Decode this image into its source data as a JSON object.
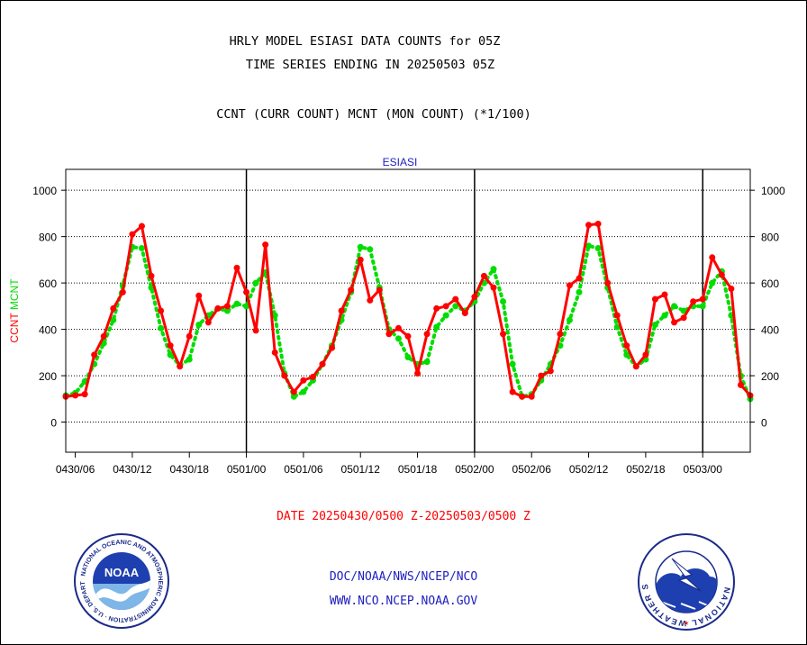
{
  "header": {
    "title_line1": "HRLY MODEL ESIASI DATA COUNTS for 05Z",
    "title_line2": "TIME SERIES ENDING IN 20250503 05Z",
    "subtitle": "CCNT (CURR COUNT) MCNT (MON COUNT) (*1/100)"
  },
  "footer": {
    "date_range": "DATE 20250430/0500 Z-20250503/0500 Z",
    "org_line": "DOC/NOAA/NWS/NCEP/NCO",
    "url_line": "WWW.NCO.NCEP.NOAA.GOV"
  },
  "logos": {
    "noaa": {
      "center_text": "NOAA",
      "ring_text": "NATIONAL OCEANIC AND ATMOSPHERIC ADMINISTRATION · U.S. DEPARTMENT OF COMMERCE ·"
    },
    "nws": {
      "ring_text": "NATIONAL WEATHER SERVICE"
    }
  },
  "colors": {
    "ccnt": "#ff0000",
    "mcnt": "#00dd00",
    "panel_title": "#2020c0",
    "footer_date": "#ff0000",
    "footer_links": "#2020c0"
  },
  "chart_data": {
    "type": "line",
    "title": "ESIASI",
    "ylabel_left": [
      "CCNT",
      "MCNT"
    ],
    "ylim": [
      -130,
      1090
    ],
    "yticks": [
      0,
      200,
      400,
      600,
      800,
      1000
    ],
    "ytick_labels": [
      "0",
      "200",
      "400",
      "600",
      "800",
      "1000"
    ],
    "x_tick_labels": [
      "0430/06",
      "0430/12",
      "0430/18",
      "0501/00",
      "0501/06",
      "0501/12",
      "0501/18",
      "0502/00",
      "0502/06",
      "0502/12",
      "0502/18",
      "0503/00"
    ],
    "x_tick_hours": [
      6,
      12,
      18,
      24,
      30,
      36,
      42,
      48,
      54,
      60,
      66,
      72
    ],
    "day_boundaries_hours": [
      24,
      48,
      72
    ],
    "x_start_hours": 5,
    "x_end_hours": 77,
    "grid": true,
    "series": [
      {
        "name": "CCNT",
        "color": "#ff0000",
        "style": "solid",
        "x_hours": [
          5,
          6,
          7,
          8,
          9,
          10,
          11,
          12,
          13,
          14,
          15,
          16,
          17,
          18,
          19,
          20,
          21,
          22,
          23,
          24,
          25,
          26,
          27,
          28,
          29,
          30,
          31,
          32,
          33,
          34,
          35,
          36,
          37,
          38,
          39,
          40,
          41,
          42,
          43,
          44,
          45,
          46,
          47,
          48,
          49,
          50,
          51,
          52,
          53,
          54,
          55,
          56,
          57,
          58,
          59,
          60,
          61,
          62,
          63,
          64,
          65,
          66,
          67,
          68,
          69,
          70,
          71,
          72,
          73,
          74,
          75,
          76,
          77
        ],
        "values": [
          110,
          115,
          120,
          290,
          370,
          490,
          560,
          810,
          845,
          630,
          480,
          330,
          240,
          370,
          545,
          430,
          490,
          500,
          665,
          560,
          395,
          765,
          300,
          200,
          130,
          180,
          195,
          250,
          320,
          480,
          570,
          700,
          525,
          570,
          380,
          405,
          370,
          210,
          380,
          490,
          500,
          530,
          470,
          540,
          630,
          580,
          380,
          130,
          110,
          110,
          200,
          220,
          380,
          590,
          620,
          850,
          855,
          600,
          460,
          330,
          240,
          290,
          530,
          550,
          430,
          450,
          520,
          530,
          710,
          635,
          575,
          160,
          115
        ]
      },
      {
        "name": "MCNT",
        "color": "#00dd00",
        "style": "dotted",
        "x_hours": [
          5,
          6,
          7,
          8,
          9,
          10,
          11,
          12,
          13,
          14,
          15,
          16,
          17,
          18,
          19,
          20,
          21,
          22,
          23,
          24,
          25,
          26,
          27,
          28,
          29,
          30,
          31,
          32,
          33,
          34,
          35,
          36,
          37,
          38,
          39,
          40,
          41,
          42,
          43,
          44,
          45,
          46,
          47,
          48,
          49,
          50,
          51,
          52,
          53,
          54,
          55,
          56,
          57,
          58,
          59,
          60,
          61,
          62,
          63,
          64,
          65,
          66,
          67,
          68,
          69,
          70,
          71,
          72,
          73,
          74,
          75,
          76,
          77
        ],
        "values": [
          115,
          125,
          175,
          250,
          340,
          440,
          590,
          755,
          750,
          580,
          405,
          290,
          245,
          270,
          420,
          460,
          490,
          480,
          510,
          500,
          600,
          645,
          460,
          210,
          110,
          130,
          180,
          250,
          330,
          440,
          560,
          755,
          745,
          580,
          400,
          360,
          280,
          250,
          260,
          410,
          460,
          500,
          480,
          520,
          600,
          660,
          520,
          250,
          110,
          120,
          180,
          250,
          330,
          440,
          560,
          760,
          750,
          580,
          410,
          290,
          240,
          270,
          420,
          460,
          500,
          480,
          500,
          500,
          600,
          650,
          460,
          200,
          100
        ]
      }
    ]
  }
}
